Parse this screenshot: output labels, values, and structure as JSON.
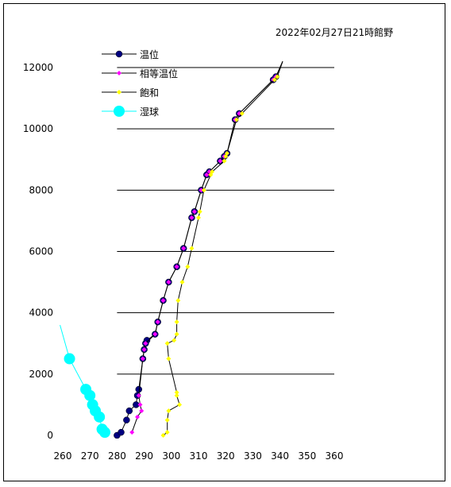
{
  "chart_data": {
    "type": "line",
    "title": "2022年02月27日21時館野",
    "xlabel": "",
    "ylabel": "",
    "xlim": [
      260,
      360
    ],
    "ylim": [
      0,
      12000
    ],
    "x_ticks": [
      "260",
      "270",
      "280",
      "290",
      "300",
      "310",
      "320",
      "330",
      "340",
      "350",
      "360"
    ],
    "y_ticks": [
      "0",
      "2000",
      "4000",
      "6000",
      "8000",
      "10000",
      "12000"
    ],
    "grid": "horizontal",
    "legend_position": "top-left",
    "series": [
      {
        "name": "温位",
        "color": "#000080",
        "line_color": "#000000",
        "marker": "circle",
        "points": [
          [
            280.0,
            0
          ],
          [
            281.5,
            100
          ],
          [
            283.5,
            500
          ],
          [
            284.5,
            800
          ],
          [
            287.0,
            1000
          ],
          [
            287.5,
            1300
          ],
          [
            288.0,
            1500
          ],
          [
            289.5,
            2500
          ],
          [
            290.0,
            2800
          ],
          [
            290.5,
            3000
          ],
          [
            291.0,
            3100
          ],
          [
            294.0,
            3300
          ],
          [
            295.0,
            3700
          ],
          [
            297.0,
            4400
          ],
          [
            299.0,
            5000
          ],
          [
            302.0,
            5500
          ],
          [
            304.5,
            6100
          ],
          [
            307.5,
            7100
          ],
          [
            308.5,
            7300
          ],
          [
            311.0,
            8000
          ],
          [
            313.0,
            8500
          ],
          [
            314.0,
            8600
          ],
          [
            318.0,
            8950
          ],
          [
            319.5,
            9100
          ],
          [
            320.5,
            9200
          ],
          [
            323.5,
            10300
          ],
          [
            325.0,
            10500
          ],
          [
            337.5,
            11600
          ],
          [
            338.5,
            11700
          ],
          [
            341.0,
            12200
          ]
        ]
      },
      {
        "name": "相等温位",
        "color": "#ff00ff",
        "line_color": "#000000",
        "marker": "diamond",
        "points": [
          [
            285.5,
            100
          ],
          [
            287.5,
            600
          ],
          [
            289.0,
            800
          ],
          [
            288.5,
            1000
          ],
          [
            288.0,
            1300
          ],
          [
            289.5,
            2500
          ],
          [
            290.0,
            2800
          ],
          [
            290.5,
            3000
          ],
          [
            294.0,
            3300
          ],
          [
            295.0,
            3700
          ],
          [
            297.0,
            4400
          ],
          [
            299.0,
            5000
          ],
          [
            302.0,
            5500
          ],
          [
            304.5,
            6100
          ],
          [
            307.5,
            7100
          ],
          [
            308.5,
            7300
          ],
          [
            311.0,
            8000
          ],
          [
            313.0,
            8500
          ],
          [
            314.0,
            8600
          ],
          [
            318.0,
            8950
          ],
          [
            319.5,
            9100
          ],
          [
            320.5,
            9200
          ],
          [
            323.5,
            10300
          ],
          [
            325.0,
            10500
          ],
          [
            337.5,
            11600
          ],
          [
            338.5,
            11700
          ],
          [
            341.0,
            12200
          ]
        ]
      },
      {
        "name": "飽和",
        "color": "#ffff00",
        "line_color": "#000000",
        "marker": "diamond",
        "points": [
          [
            297.0,
            0
          ],
          [
            298.5,
            100
          ],
          [
            298.5,
            500
          ],
          [
            299.0,
            800
          ],
          [
            303.0,
            1000
          ],
          [
            302.0,
            1300
          ],
          [
            302.0,
            1400
          ],
          [
            299.0,
            2500
          ],
          [
            298.5,
            3000
          ],
          [
            301.0,
            3100
          ],
          [
            302.0,
            3300
          ],
          [
            302.0,
            3700
          ],
          [
            302.5,
            4400
          ],
          [
            304.0,
            5000
          ],
          [
            306.0,
            5500
          ],
          [
            307.5,
            6100
          ],
          [
            310.0,
            7100
          ],
          [
            310.5,
            7300
          ],
          [
            312.0,
            8000
          ],
          [
            314.5,
            8500
          ],
          [
            315.0,
            8600
          ],
          [
            319.5,
            8950
          ],
          [
            320.0,
            9100
          ],
          [
            320.5,
            9200
          ],
          [
            324.0,
            10300
          ],
          [
            326.0,
            10500
          ],
          [
            338.0,
            11600
          ],
          [
            339.0,
            11700
          ],
          [
            341.0,
            12200
          ]
        ]
      },
      {
        "name": "湿球",
        "color": "#00ffff",
        "line_color": "#00ffff",
        "marker": "big-circle",
        "points": [
          [
            259.0,
            3600
          ],
          [
            262.5,
            2500
          ],
          [
            268.5,
            1500
          ],
          [
            270.0,
            1300
          ],
          [
            271.0,
            1000
          ],
          [
            272.0,
            800
          ],
          [
            273.5,
            600
          ],
          [
            274.5,
            200
          ],
          [
            275.5,
            100
          ]
        ]
      }
    ]
  }
}
